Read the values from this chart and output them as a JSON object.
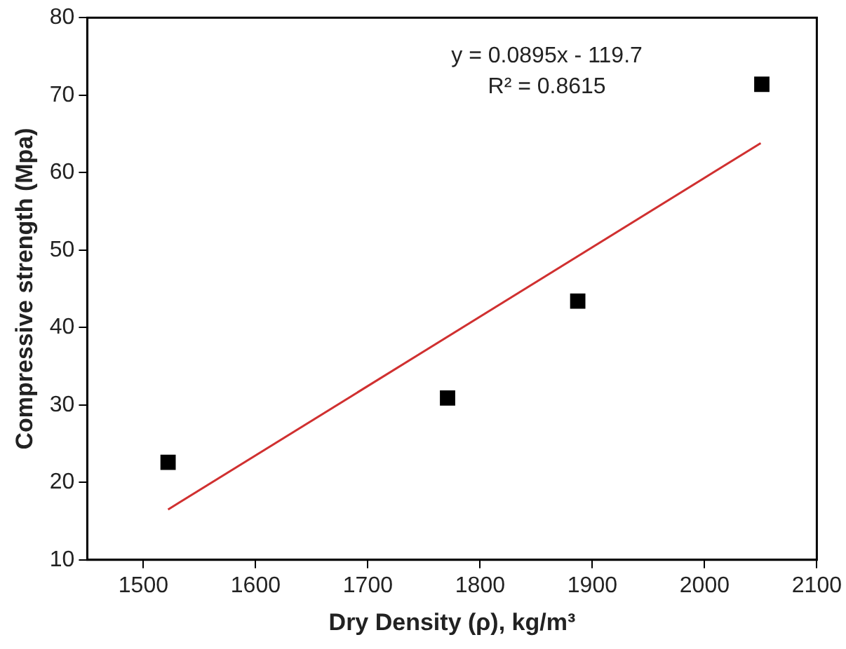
{
  "chart_data": {
    "type": "scatter",
    "xlabel": "Dry Density (ρ), kg/m³",
    "ylabel": "Compressive strength (Mpa)",
    "annotations": [
      "y = 0.0895x - 119.7",
      "R² = 0.8615"
    ],
    "xlim": [
      1450,
      2100
    ],
    "xticks": [
      1500,
      1600,
      1700,
      1800,
      1900,
      2000,
      2100
    ],
    "ylim": [
      10,
      80
    ],
    "yticks": [
      10,
      20,
      30,
      40,
      50,
      60,
      70,
      80
    ],
    "grid": false,
    "legend": false,
    "marker": "square",
    "series": [
      {
        "color": "#000000",
        "x": [
          1522,
          1771,
          1887,
          2051
        ],
        "values": [
          22.6,
          30.9,
          43.4,
          71.4
        ]
      },
      {
        "type": "line",
        "color": "#d03030",
        "x": [
          1522,
          2050
        ],
        "values": [
          16.5,
          63.8
        ],
        "marker": "none",
        "line_style": "solid"
      }
    ]
  }
}
